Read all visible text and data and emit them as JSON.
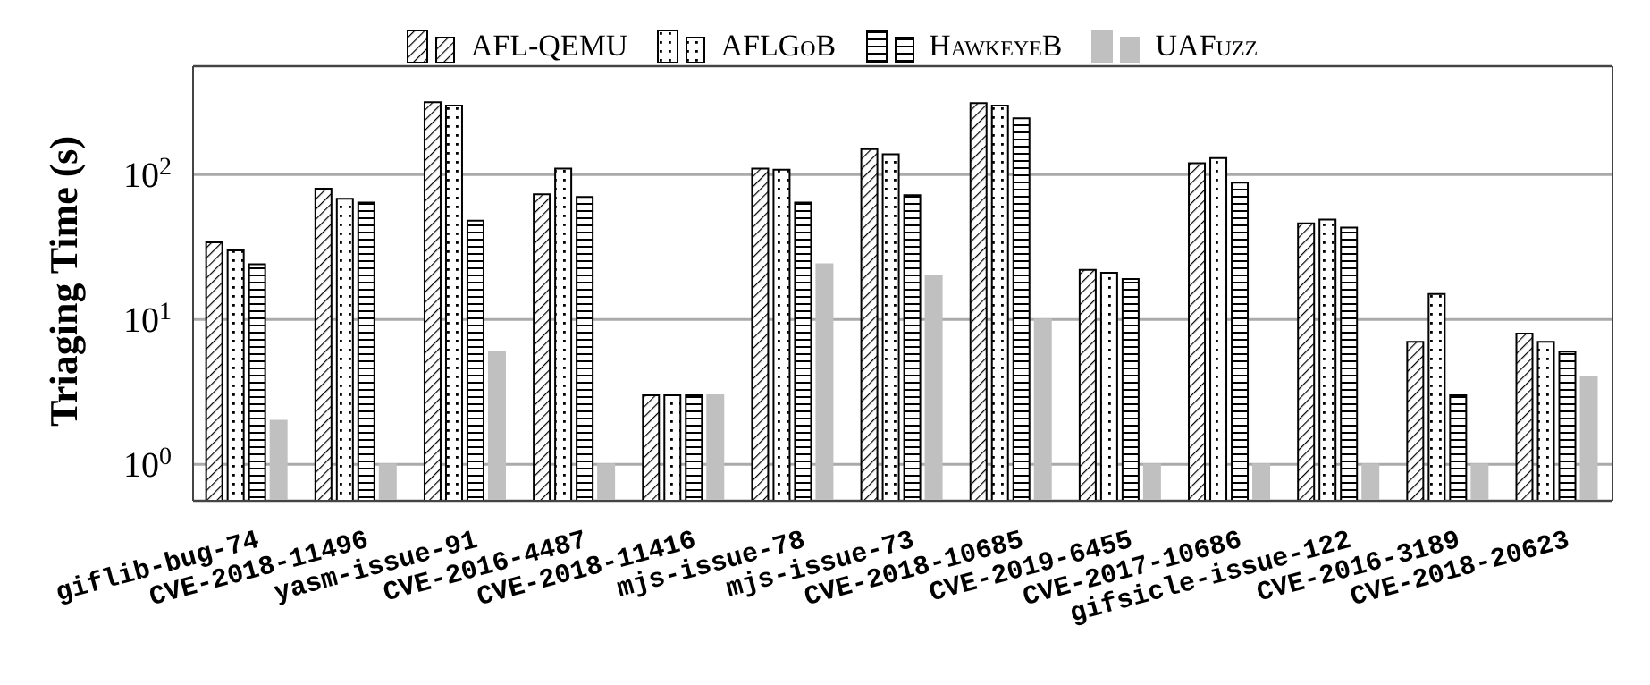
{
  "chart_data": {
    "type": "bar",
    "ylabel": "Triaging Time (s)",
    "categories": [
      "giflib-bug-74",
      "CVE-2018-11496",
      "yasm-issue-91",
      "CVE-2016-4487",
      "CVE-2018-11416",
      "mjs-issue-78",
      "mjs-issue-73",
      "CVE-2018-10685",
      "CVE-2019-6455",
      "CVE-2017-10686",
      "gifsicle-issue-122",
      "CVE-2016-3189",
      "CVE-2018-20623"
    ],
    "series": [
      {
        "name": "AFL-QEMU",
        "color": "#000000",
        "values": [
          34,
          80,
          316,
          73,
          3,
          110,
          150,
          312,
          22,
          120,
          46,
          7,
          8
        ]
      },
      {
        "name": "AFLGoB",
        "color": "#000000",
        "values": [
          30,
          68,
          300,
          110,
          3,
          108,
          138,
          300,
          21,
          130,
          49,
          15,
          7
        ]
      },
      {
        "name": "HawkeyeB",
        "color": "#000000",
        "values": [
          24,
          64,
          48,
          70,
          3,
          64,
          72,
          245,
          19,
          88,
          43,
          3,
          6
        ]
      },
      {
        "name": "UAFuzz",
        "color": "#c0c0c0",
        "values": [
          2,
          1,
          6,
          1,
          3,
          24,
          20,
          10,
          1,
          1,
          1,
          1,
          4
        ]
      }
    ],
    "log": true,
    "ylim": [
      0.56,
      560
    ],
    "yticks": [
      {
        "value": 1,
        "label": "10$^{0}$"
      },
      {
        "value": 10,
        "label": "10$^{1}$"
      },
      {
        "value": 100,
        "label": "10$^{2}$"
      }
    ],
    "grid": "y",
    "legend": "top"
  }
}
